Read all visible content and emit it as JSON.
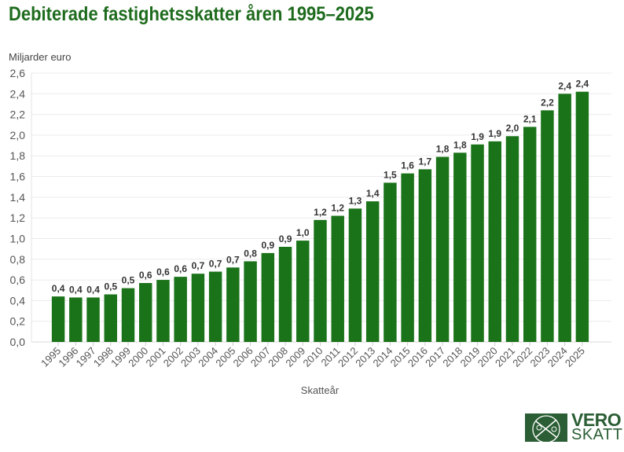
{
  "chart_data": {
    "type": "bar",
    "title": "Debiterade fastighetsskatter åren 1995–2025",
    "ylabel": "Miljarder euro",
    "xlabel": "Skatteår",
    "ylim": [
      0,
      2.6
    ],
    "yticks": [
      "0,0",
      "0,2",
      "0,4",
      "0,6",
      "0,8",
      "1,0",
      "1,2",
      "1,4",
      "1,6",
      "1,8",
      "2,0",
      "2,2",
      "2,4",
      "2,6"
    ],
    "grid": true,
    "bar_color": "#1a7319",
    "categories": [
      "1995",
      "1996",
      "1997",
      "1998",
      "1999",
      "2000",
      "2001",
      "2002",
      "2003",
      "2004",
      "2005",
      "2006",
      "2007",
      "2008",
      "2009",
      "2010",
      "2011",
      "2012",
      "2013",
      "2014",
      "2015",
      "2016",
      "2017",
      "2018",
      "2019",
      "2020",
      "2021",
      "2022",
      "2023",
      "2024",
      "2025"
    ],
    "values": [
      0.44,
      0.43,
      0.43,
      0.46,
      0.52,
      0.57,
      0.6,
      0.63,
      0.66,
      0.68,
      0.72,
      0.78,
      0.86,
      0.92,
      0.98,
      1.18,
      1.22,
      1.29,
      1.36,
      1.54,
      1.63,
      1.67,
      1.79,
      1.83,
      1.91,
      1.94,
      1.99,
      2.08,
      2.24,
      2.4,
      2.42
    ],
    "data_labels": [
      "0,4",
      "0,4",
      "0,4",
      "0,5",
      "0,5",
      "0,6",
      "0,6",
      "0,6",
      "0,7",
      "0,7",
      "0,7",
      "0,8",
      "0,9",
      "0,9",
      "1,0",
      "1,2",
      "1,2",
      "1,3",
      "1,4",
      "1,5",
      "1,6",
      "1,7",
      "1,8",
      "1,8",
      "1,9",
      "1,9",
      "2,0",
      "2,1",
      "2,2",
      "2,4",
      "2,4"
    ]
  },
  "logo": {
    "line1": "VERO",
    "line2": "SKATT",
    "color": "#2b5e35"
  }
}
